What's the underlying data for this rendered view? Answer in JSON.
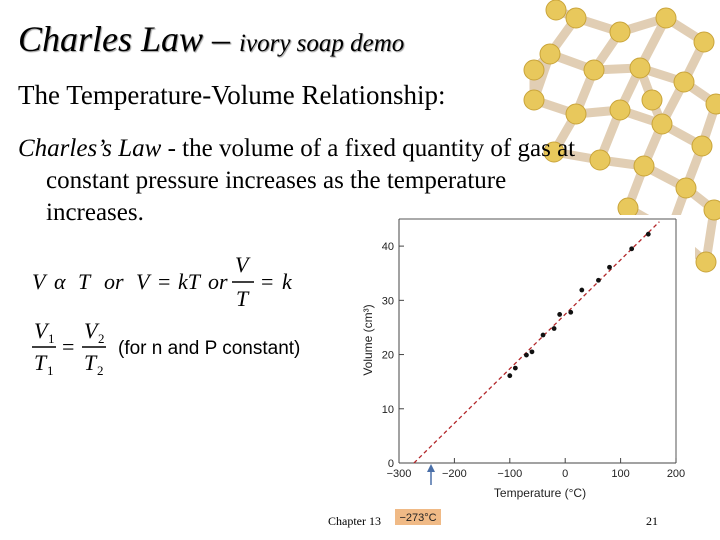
{
  "slide": {
    "title_main": "Charles Law – ",
    "title_sub": "ivory soap demo",
    "subtitle": "The Temperature-Volume Relationship:",
    "law_italic": "Charles’s Law",
    "law_line1_rest": " - the volume of a fixed quantity of gas at",
    "law_line2": "constant pressure increases as the temperature",
    "law_line3": "increases.",
    "eq2_note": "(for n and P constant)",
    "footer_left": "Chapter 13",
    "page_number": "21"
  },
  "equations": {
    "eq1_v": "V",
    "eq1_alpha": "α",
    "eq1_t": "T",
    "eq1_or1": "or",
    "eq1_v2": "V",
    "eq1_equals": "=",
    "eq1_kt": "kT",
    "eq1_or2": "or",
    "eq1_frac_num": "V",
    "eq1_frac_den": "T",
    "eq1_equals2": "=",
    "eq1_k": "k",
    "eq2_v": "V",
    "eq2_v_sub": "1",
    "eq2_t": "T",
    "eq2_t_sub": "1",
    "eq2_equals": "=",
    "eq2_v2": "V",
    "eq2_v2_sub": "2",
    "eq2_t2": "T",
    "eq2_t2_sub": "2"
  },
  "chart_data": {
    "type": "scatter",
    "xlabel": "Temperature (°C)",
    "ylabel": "Volume (cm³)",
    "xlim": [
      -300,
      200
    ],
    "ylim": [
      0,
      45
    ],
    "xticks": [
      -300,
      -200,
      -100,
      0,
      100,
      200
    ],
    "xtick_labels": [
      "−300",
      "−200",
      "−100",
      "0",
      "100",
      "200"
    ],
    "yticks": [
      0,
      10,
      20,
      30,
      40
    ],
    "ytick_labels": [
      "0",
      "10",
      "20",
      "30",
      "40"
    ],
    "grid": false,
    "points": [
      [
        -100,
        16.1
      ],
      [
        -90,
        17.5
      ],
      [
        -70,
        19.9
      ],
      [
        -60,
        20.5
      ],
      [
        -40,
        23.6
      ],
      [
        -20,
        24.8
      ],
      [
        -10,
        27.4
      ],
      [
        10,
        27.8
      ],
      [
        30,
        31.9
      ],
      [
        60,
        33.7
      ],
      [
        80,
        36.1
      ],
      [
        120,
        39.5
      ],
      [
        150,
        42.2
      ]
    ],
    "fit_line": {
      "x": [
        -273,
        170
      ],
      "y": [
        0,
        44.5
      ],
      "style": "dashed"
    },
    "annotation": "−273°C",
    "colors": {
      "points": "#111111",
      "fit_line": "#b3272a",
      "annotation_bg": "#f0ba86",
      "arrow": "#4a6fa8"
    }
  },
  "decor": {
    "background": "#ffffff",
    "molecule_node": "#e8c85c",
    "molecule_bond": "#e0ccb0",
    "title_shadow": "#9a9a9a"
  }
}
